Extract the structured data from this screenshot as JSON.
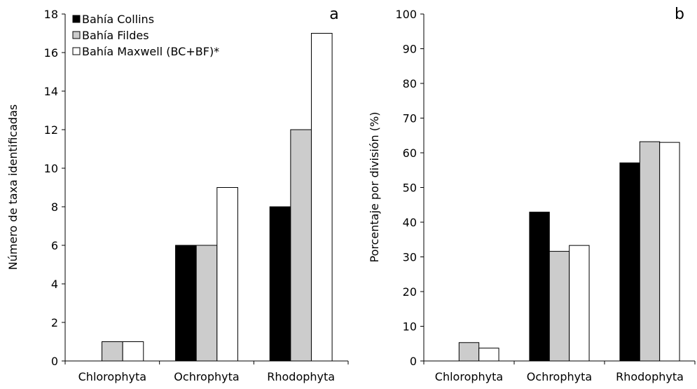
{
  "chart_data": [
    {
      "type": "bar",
      "panel_label": "a",
      "categories": [
        "Chlorophyta",
        "Ochrophyta",
        "Rhodophyta"
      ],
      "ylabel": "Número de taxa identificadas",
      "xlabel": "",
      "ylim": [
        0,
        18
      ],
      "yticks": [
        0,
        2,
        4,
        6,
        8,
        10,
        12,
        14,
        16,
        18
      ],
      "grid": false,
      "legend_position": "top-left",
      "series": [
        {
          "name": "Bahía Collins",
          "color": "#000000",
          "values": [
            0,
            6,
            8
          ]
        },
        {
          "name": "Bahía Fildes",
          "color": "#cccccc",
          "values": [
            1,
            6,
            12
          ]
        },
        {
          "name": "Bahía Maxwell (BC+BF)*",
          "color": "#ffffff",
          "values": [
            1,
            9,
            17
          ]
        }
      ]
    },
    {
      "type": "bar",
      "panel_label": "b",
      "categories": [
        "Chlorophyta",
        "Ochrophyta",
        "Rhodophyta"
      ],
      "ylabel": "Porcentaje por división (%)",
      "xlabel": "",
      "ylim": [
        0,
        100
      ],
      "yticks": [
        0,
        10,
        20,
        30,
        40,
        50,
        60,
        70,
        80,
        90,
        100
      ],
      "grid": false,
      "series": [
        {
          "name": "Bahía Collins",
          "color": "#000000",
          "values": [
            0,
            42.9,
            57.1
          ]
        },
        {
          "name": "Bahía Fildes",
          "color": "#cccccc",
          "values": [
            5.3,
            31.6,
            63.2
          ]
        },
        {
          "name": "Bahía Maxwell (BC+BF)*",
          "color": "#ffffff",
          "values": [
            3.7,
            33.3,
            63.0
          ]
        }
      ]
    }
  ]
}
